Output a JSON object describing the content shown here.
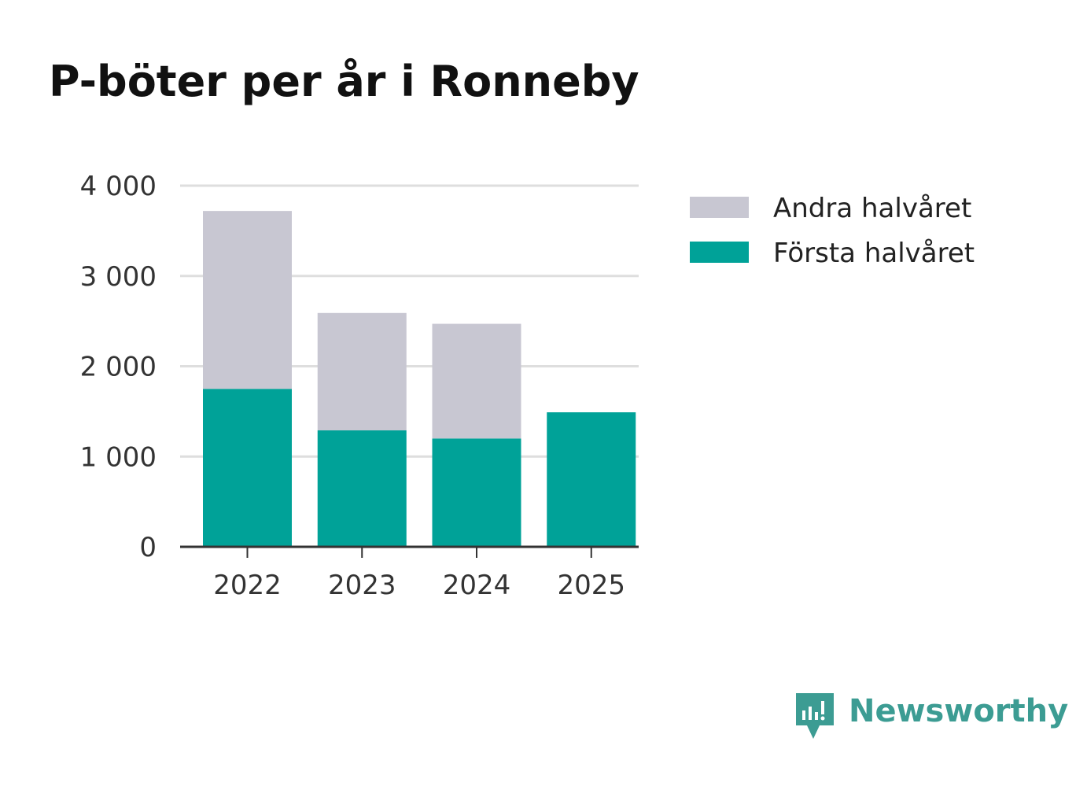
{
  "chart_data": {
    "type": "bar",
    "stacked": true,
    "title": "P-böter per år i Ronneby",
    "xlabel": "",
    "ylabel": "",
    "categories": [
      "2022",
      "2023",
      "2024",
      "2025"
    ],
    "series": [
      {
        "name": "Första halvåret",
        "values": [
          1750,
          1290,
          1200,
          1490
        ],
        "color": "#00a298"
      },
      {
        "name": "Andra halvåret",
        "values": [
          1970,
          1300,
          1270,
          0
        ],
        "color": "#c8c7d2"
      }
    ],
    "ylim": [
      0,
      4000
    ],
    "yticks": [
      0,
      1000,
      2000,
      3000,
      4000
    ],
    "ytick_labels": [
      "0",
      "1 000",
      "2 000",
      "3 000",
      "4 000"
    ],
    "grid": true,
    "legend_position": "top-right",
    "legend": [
      {
        "label": "Andra halvåret",
        "color": "#c8c7d2"
      },
      {
        "label": "Första halvåret",
        "color": "#00a298"
      }
    ]
  },
  "brand": {
    "name": "Newsworthy",
    "icon": "newsworthy-logo-icon",
    "color": "#3c9c93"
  }
}
